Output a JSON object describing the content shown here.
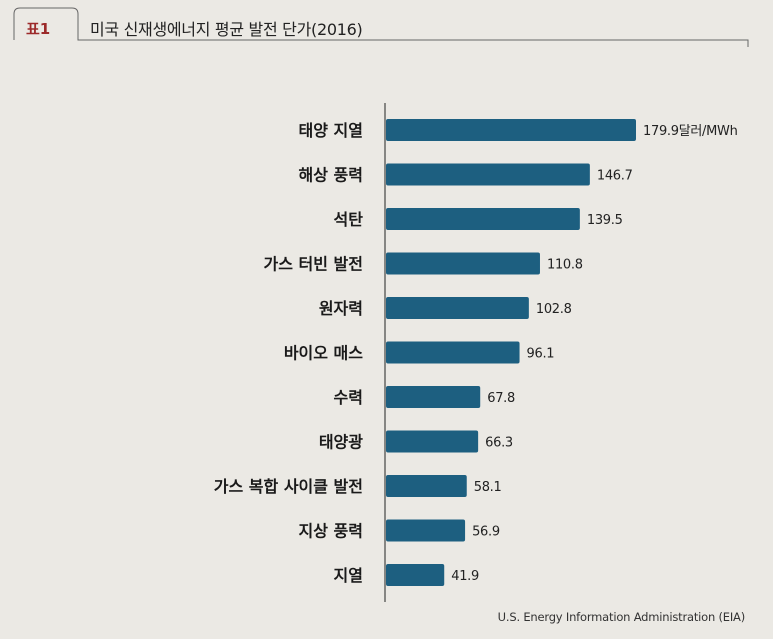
{
  "header": {
    "badge": "표1",
    "title": "미국 신재생에너지 평균 발전 단가(2016)"
  },
  "source": "U.S. Energy Information Administration (EIA)",
  "colors": {
    "bar": "#1d5f80",
    "badge": "#9c2a2a",
    "background": "#ebe9e4"
  },
  "chart_data": {
    "type": "bar",
    "orientation": "horizontal",
    "title": "미국 신재생에너지 평균 발전 단가(2016)",
    "unit": "달러/MWh",
    "categories": [
      "태양 지열",
      "해상 풍력",
      "석탄",
      "가스 터빈 발전",
      "원자력",
      "바이오 매스",
      "수력",
      "태양광",
      "가스 복합 사이클 발전",
      "지상 풍력",
      "지열"
    ],
    "values": [
      179.9,
      146.7,
      139.5,
      110.8,
      102.8,
      96.1,
      67.8,
      66.3,
      58.1,
      56.9,
      41.9
    ],
    "value_labels": [
      "179.9달러/MWh",
      "146.7",
      "139.5",
      "110.8",
      "102.8",
      "96.1",
      "67.8",
      "66.3",
      "58.1",
      "56.9",
      "41.9"
    ],
    "grid": false,
    "legend": "none"
  }
}
